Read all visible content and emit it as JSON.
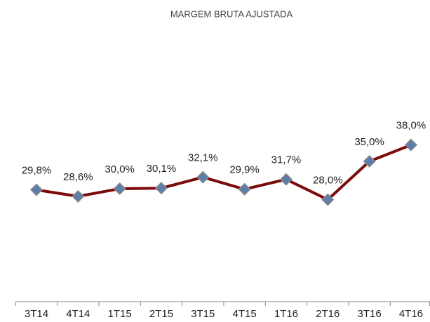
{
  "chart_data": {
    "type": "line",
    "title": "MARGEM BRUTA AJUSTADA",
    "categories": [
      "3T14",
      "4T14",
      "1T15",
      "2T15",
      "3T15",
      "4T15",
      "1T16",
      "2T16",
      "3T16",
      "4T16"
    ],
    "series": [
      {
        "color": "#7b0a0a",
        "marker_color": "#5c7ea8",
        "values": [
          29.8,
          28.6,
          30.0,
          30.1,
          32.1,
          29.9,
          31.7,
          28.0,
          35.0,
          38.0
        ],
        "value_labels": [
          "29,8%",
          "28,6%",
          "30,0%",
          "30,1%",
          "32,1%",
          "29,9%",
          "31,7%",
          "28,0%",
          "35,0%",
          "38,0%"
        ]
      }
    ],
    "ylim": [
      10,
      60
    ]
  }
}
